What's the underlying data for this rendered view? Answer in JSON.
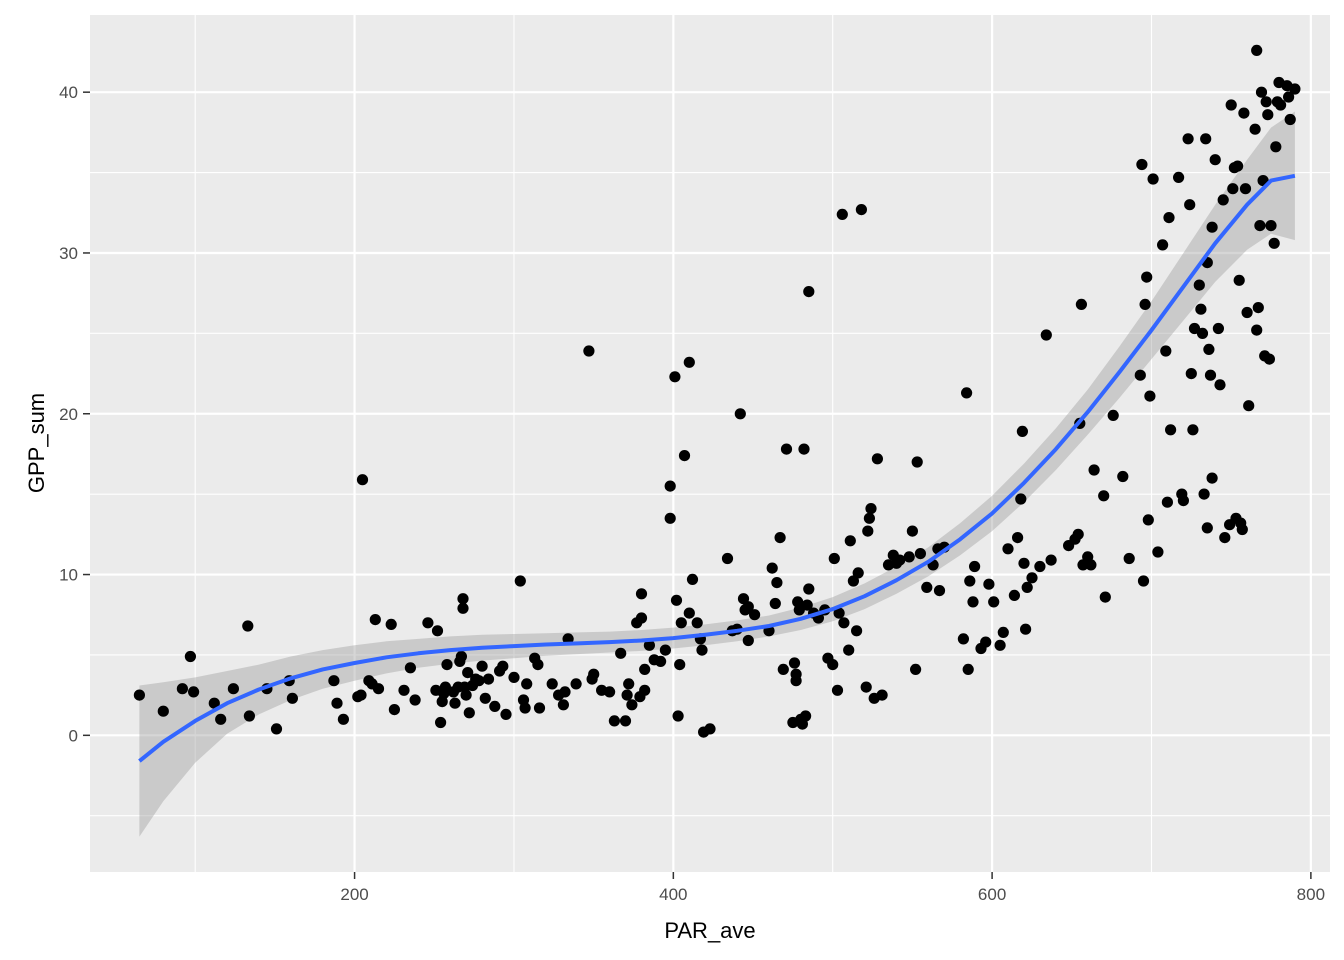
{
  "chart_data": {
    "type": "scatter",
    "title": "",
    "xlabel": "PAR_ave",
    "ylabel": "GPP_sum",
    "xlim": [
      34,
      812
    ],
    "ylim": [
      -8.5,
      44.8
    ],
    "x_ticks": [
      200,
      400,
      600,
      800
    ],
    "y_ticks": [
      0,
      10,
      20,
      30,
      40
    ],
    "x_tick_labels": [
      "200",
      "400",
      "600",
      "800"
    ],
    "y_tick_labels": [
      "0",
      "10",
      "20",
      "30",
      "40"
    ],
    "grid": true,
    "legend": "none",
    "colors": {
      "panel": "#EBEBEB",
      "grid": "#FFFFFF",
      "points": "#000000",
      "smooth_line": "#3366FF",
      "confidence_band": "#999999"
    },
    "points": [
      [
        65,
        2.5
      ],
      [
        80,
        1.5
      ],
      [
        92,
        2.9
      ],
      [
        97,
        4.9
      ],
      [
        99,
        2.7
      ],
      [
        112,
        2.0
      ],
      [
        116,
        1.0
      ],
      [
        124,
        2.9
      ],
      [
        133,
        6.8
      ],
      [
        134,
        1.2
      ],
      [
        145,
        2.9
      ],
      [
        151,
        0.4
      ],
      [
        159,
        3.4
      ],
      [
        161,
        2.3
      ],
      [
        187,
        3.4
      ],
      [
        189,
        2.0
      ],
      [
        193,
        1.0
      ],
      [
        202,
        2.4
      ],
      [
        204,
        2.5
      ],
      [
        205,
        15.9
      ],
      [
        209,
        3.4
      ],
      [
        211,
        3.2
      ],
      [
        213,
        7.2
      ],
      [
        215,
        2.9
      ],
      [
        223,
        6.9
      ],
      [
        225,
        1.6
      ],
      [
        231,
        2.8
      ],
      [
        235,
        4.2
      ],
      [
        238,
        2.2
      ],
      [
        246,
        7.0
      ],
      [
        251,
        2.8
      ],
      [
        252,
        6.5
      ],
      [
        254,
        0.8
      ],
      [
        255,
        2.1
      ],
      [
        256,
        2.6
      ],
      [
        257,
        3.0
      ],
      [
        258,
        4.4
      ],
      [
        262,
        2.7
      ],
      [
        263,
        2.0
      ],
      [
        265,
        3.0
      ],
      [
        266,
        4.6
      ],
      [
        267,
        4.9
      ],
      [
        268,
        7.9
      ],
      [
        268,
        8.5
      ],
      [
        269,
        3.0
      ],
      [
        270,
        2.5
      ],
      [
        271,
        3.9
      ],
      [
        272,
        1.4
      ],
      [
        274,
        3.1
      ],
      [
        276,
        3.5
      ],
      [
        278,
        3.4
      ],
      [
        280,
        4.3
      ],
      [
        282,
        2.3
      ],
      [
        284,
        3.5
      ],
      [
        288,
        1.8
      ],
      [
        291,
        4.0
      ],
      [
        293,
        4.3
      ],
      [
        295,
        1.3
      ],
      [
        300,
        3.6
      ],
      [
        304,
        9.6
      ],
      [
        306,
        2.2
      ],
      [
        307,
        1.7
      ],
      [
        308,
        3.2
      ],
      [
        313,
        4.8
      ],
      [
        315,
        4.4
      ],
      [
        316,
        1.7
      ],
      [
        324,
        3.2
      ],
      [
        328,
        2.5
      ],
      [
        331,
        1.9
      ],
      [
        332,
        2.7
      ],
      [
        334,
        6.0
      ],
      [
        339,
        3.2
      ],
      [
        347,
        23.9
      ],
      [
        349,
        3.5
      ],
      [
        350,
        3.8
      ],
      [
        355,
        2.8
      ],
      [
        360,
        2.7
      ],
      [
        363,
        0.9
      ],
      [
        367,
        5.1
      ],
      [
        370,
        0.9
      ],
      [
        371,
        2.5
      ],
      [
        372,
        3.2
      ],
      [
        374,
        1.9
      ],
      [
        377,
        7.0
      ],
      [
        379,
        2.4
      ],
      [
        380,
        8.8
      ],
      [
        380,
        7.3
      ],
      [
        382,
        2.8
      ],
      [
        382,
        4.1
      ],
      [
        385,
        5.6
      ],
      [
        388,
        4.7
      ],
      [
        392,
        4.6
      ],
      [
        395,
        5.3
      ],
      [
        398,
        15.5
      ],
      [
        398,
        13.5
      ],
      [
        401,
        22.3
      ],
      [
        402,
        8.4
      ],
      [
        403,
        1.2
      ],
      [
        404,
        4.4
      ],
      [
        405,
        7.0
      ],
      [
        407,
        17.4
      ],
      [
        410,
        23.2
      ],
      [
        410,
        7.6
      ],
      [
        412,
        9.7
      ],
      [
        415,
        7.0
      ],
      [
        417,
        6.0
      ],
      [
        418,
        5.3
      ],
      [
        419,
        0.2
      ],
      [
        423,
        0.4
      ],
      [
        434,
        11.0
      ],
      [
        437,
        6.5
      ],
      [
        440,
        6.6
      ],
      [
        442,
        20.0
      ],
      [
        444,
        8.5
      ],
      [
        445,
        7.8
      ],
      [
        447,
        8.0
      ],
      [
        447,
        5.9
      ],
      [
        451,
        7.5
      ],
      [
        460,
        6.5
      ],
      [
        462,
        10.4
      ],
      [
        464,
        8.2
      ],
      [
        465,
        9.5
      ],
      [
        467,
        12.3
      ],
      [
        469,
        4.1
      ],
      [
        471,
        17.8
      ],
      [
        475,
        0.8
      ],
      [
        476,
        4.5
      ],
      [
        477,
        3.8
      ],
      [
        477,
        3.4
      ],
      [
        478,
        8.3
      ],
      [
        479,
        7.8
      ],
      [
        480,
        1.0
      ],
      [
        481,
        0.7
      ],
      [
        482,
        17.8
      ],
      [
        483,
        1.2
      ],
      [
        484,
        8.1
      ],
      [
        485,
        27.6
      ],
      [
        485,
        9.1
      ],
      [
        488,
        7.6
      ],
      [
        491,
        7.3
      ],
      [
        495,
        7.8
      ],
      [
        497,
        4.8
      ],
      [
        500,
        4.4
      ],
      [
        501,
        11.0
      ],
      [
        503,
        2.8
      ],
      [
        504,
        7.6
      ],
      [
        506,
        32.4
      ],
      [
        507,
        7.0
      ],
      [
        510,
        5.3
      ],
      [
        511,
        12.1
      ],
      [
        513,
        9.6
      ],
      [
        515,
        6.5
      ],
      [
        516,
        10.1
      ],
      [
        518,
        32.7
      ],
      [
        521,
        3.0
      ],
      [
        522,
        12.7
      ],
      [
        523,
        13.5
      ],
      [
        524,
        14.1
      ],
      [
        526,
        2.3
      ],
      [
        528,
        17.2
      ],
      [
        531,
        2.5
      ],
      [
        535,
        10.6
      ],
      [
        538,
        11.2
      ],
      [
        540,
        10.7
      ],
      [
        542,
        10.9
      ],
      [
        548,
        11.1
      ],
      [
        550,
        12.7
      ],
      [
        552,
        4.1
      ],
      [
        553,
        17.0
      ],
      [
        555,
        11.3
      ],
      [
        559,
        9.2
      ],
      [
        563,
        10.6
      ],
      [
        566,
        11.6
      ],
      [
        567,
        9.0
      ],
      [
        570,
        11.7
      ],
      [
        582,
        6.0
      ],
      [
        584,
        21.3
      ],
      [
        585,
        4.1
      ],
      [
        586,
        9.6
      ],
      [
        588,
        8.3
      ],
      [
        589,
        10.5
      ],
      [
        593,
        5.4
      ],
      [
        596,
        5.8
      ],
      [
        598,
        9.4
      ],
      [
        601,
        8.3
      ],
      [
        605,
        5.6
      ],
      [
        607,
        6.4
      ],
      [
        610,
        11.6
      ],
      [
        614,
        8.7
      ],
      [
        616,
        12.3
      ],
      [
        618,
        14.7
      ],
      [
        619,
        18.9
      ],
      [
        620,
        10.7
      ],
      [
        621,
        6.6
      ],
      [
        622,
        9.2
      ],
      [
        625,
        9.8
      ],
      [
        630,
        10.5
      ],
      [
        634,
        24.9
      ],
      [
        637,
        10.9
      ],
      [
        648,
        11.8
      ],
      [
        652,
        12.2
      ],
      [
        654,
        12.5
      ],
      [
        655,
        19.4
      ],
      [
        656,
        26.8
      ],
      [
        657,
        10.6
      ],
      [
        660,
        11.1
      ],
      [
        662,
        10.6
      ],
      [
        664,
        16.5
      ],
      [
        670,
        14.9
      ],
      [
        671,
        8.6
      ],
      [
        676,
        19.9
      ],
      [
        682,
        16.1
      ],
      [
        686,
        11.0
      ],
      [
        693,
        22.4
      ],
      [
        694,
        35.5
      ],
      [
        695,
        9.6
      ],
      [
        696,
        26.8
      ],
      [
        697,
        28.5
      ],
      [
        698,
        13.4
      ],
      [
        699,
        21.1
      ],
      [
        701,
        34.6
      ],
      [
        704,
        11.4
      ],
      [
        707,
        30.5
      ],
      [
        709,
        23.9
      ],
      [
        710,
        14.5
      ],
      [
        711,
        32.2
      ],
      [
        712,
        19.0
      ],
      [
        717,
        34.7
      ],
      [
        719,
        15.0
      ],
      [
        720,
        14.6
      ],
      [
        723,
        37.1
      ],
      [
        724,
        33.0
      ],
      [
        725,
        22.5
      ],
      [
        726,
        19.0
      ],
      [
        727,
        25.3
      ],
      [
        730,
        28.0
      ],
      [
        731,
        26.5
      ],
      [
        732,
        25.0
      ],
      [
        733,
        15.0
      ],
      [
        734,
        37.1
      ],
      [
        735,
        29.4
      ],
      [
        735,
        12.9
      ],
      [
        736,
        24.0
      ],
      [
        737,
        22.4
      ],
      [
        738,
        16.0
      ],
      [
        738,
        31.6
      ],
      [
        740,
        35.8
      ],
      [
        742,
        25.3
      ],
      [
        743,
        21.8
      ],
      [
        745,
        33.3
      ],
      [
        746,
        12.3
      ],
      [
        749,
        13.1
      ],
      [
        750,
        39.2
      ],
      [
        751,
        34.0
      ],
      [
        752,
        35.3
      ],
      [
        753,
        13.5
      ],
      [
        754,
        35.4
      ],
      [
        755,
        28.3
      ],
      [
        756,
        13.2
      ],
      [
        757,
        12.8
      ],
      [
        758,
        38.7
      ],
      [
        759,
        34.0
      ],
      [
        760,
        26.3
      ],
      [
        761,
        20.5
      ],
      [
        765,
        37.7
      ],
      [
        766,
        42.6
      ],
      [
        766,
        25.2
      ],
      [
        767,
        26.6
      ],
      [
        768,
        31.7
      ],
      [
        769,
        40.0
      ],
      [
        770,
        34.5
      ],
      [
        771,
        23.6
      ],
      [
        772,
        39.4
      ],
      [
        773,
        38.6
      ],
      [
        774,
        23.4
      ],
      [
        775,
        31.7
      ],
      [
        777,
        30.6
      ],
      [
        778,
        36.6
      ],
      [
        779,
        39.4
      ],
      [
        780,
        40.6
      ],
      [
        781,
        39.2
      ],
      [
        785,
        40.4
      ],
      [
        786,
        39.7
      ],
      [
        787,
        38.3
      ],
      [
        790,
        40.2
      ]
    ],
    "smooth_fit": [
      [
        65,
        -1.6
      ],
      [
        80,
        -0.4
      ],
      [
        100,
        0.9
      ],
      [
        120,
        2.0
      ],
      [
        140,
        2.85
      ],
      [
        160,
        3.55
      ],
      [
        180,
        4.1
      ],
      [
        200,
        4.5
      ],
      [
        220,
        4.85
      ],
      [
        240,
        5.1
      ],
      [
        260,
        5.3
      ],
      [
        280,
        5.45
      ],
      [
        300,
        5.55
      ],
      [
        320,
        5.65
      ],
      [
        340,
        5.72
      ],
      [
        360,
        5.8
      ],
      [
        380,
        5.9
      ],
      [
        400,
        6.05
      ],
      [
        420,
        6.25
      ],
      [
        440,
        6.5
      ],
      [
        460,
        6.8
      ],
      [
        480,
        7.25
      ],
      [
        500,
        7.85
      ],
      [
        520,
        8.65
      ],
      [
        540,
        9.65
      ],
      [
        560,
        10.8
      ],
      [
        580,
        12.2
      ],
      [
        600,
        13.8
      ],
      [
        620,
        15.7
      ],
      [
        640,
        17.8
      ],
      [
        660,
        20.1
      ],
      [
        680,
        22.6
      ],
      [
        700,
        25.2
      ],
      [
        720,
        27.9
      ],
      [
        740,
        30.6
      ],
      [
        760,
        33.0
      ],
      [
        775,
        34.5
      ],
      [
        790,
        34.8
      ]
    ],
    "confidence_band": [
      [
        65,
        -6.3,
        3.1
      ],
      [
        80,
        -4.1,
        3.3
      ],
      [
        100,
        -1.7,
        3.6
      ],
      [
        120,
        0.1,
        4.0
      ],
      [
        140,
        1.3,
        4.4
      ],
      [
        160,
        2.2,
        4.9
      ],
      [
        180,
        2.9,
        5.3
      ],
      [
        200,
        3.4,
        5.6
      ],
      [
        220,
        3.85,
        5.85
      ],
      [
        240,
        4.2,
        6.0
      ],
      [
        260,
        4.45,
        6.15
      ],
      [
        280,
        4.65,
        6.25
      ],
      [
        300,
        4.8,
        6.3
      ],
      [
        320,
        4.95,
        6.35
      ],
      [
        340,
        5.05,
        6.4
      ],
      [
        360,
        5.15,
        6.45
      ],
      [
        380,
        5.25,
        6.55
      ],
      [
        400,
        5.4,
        6.7
      ],
      [
        420,
        5.6,
        6.9
      ],
      [
        440,
        5.85,
        7.15
      ],
      [
        460,
        6.15,
        7.45
      ],
      [
        480,
        6.55,
        7.95
      ],
      [
        500,
        7.1,
        8.6
      ],
      [
        520,
        7.85,
        9.45
      ],
      [
        540,
        8.8,
        10.5
      ],
      [
        560,
        9.9,
        11.7
      ],
      [
        580,
        11.2,
        13.2
      ],
      [
        600,
        12.7,
        14.9
      ],
      [
        620,
        14.5,
        16.9
      ],
      [
        640,
        16.5,
        19.1
      ],
      [
        660,
        18.7,
        21.5
      ],
      [
        680,
        21.0,
        24.2
      ],
      [
        700,
        23.4,
        27.0
      ],
      [
        720,
        25.8,
        30.0
      ],
      [
        740,
        28.2,
        33.0
      ],
      [
        760,
        30.2,
        35.8
      ],
      [
        775,
        31.2,
        37.8
      ],
      [
        790,
        30.8,
        38.8
      ]
    ]
  }
}
